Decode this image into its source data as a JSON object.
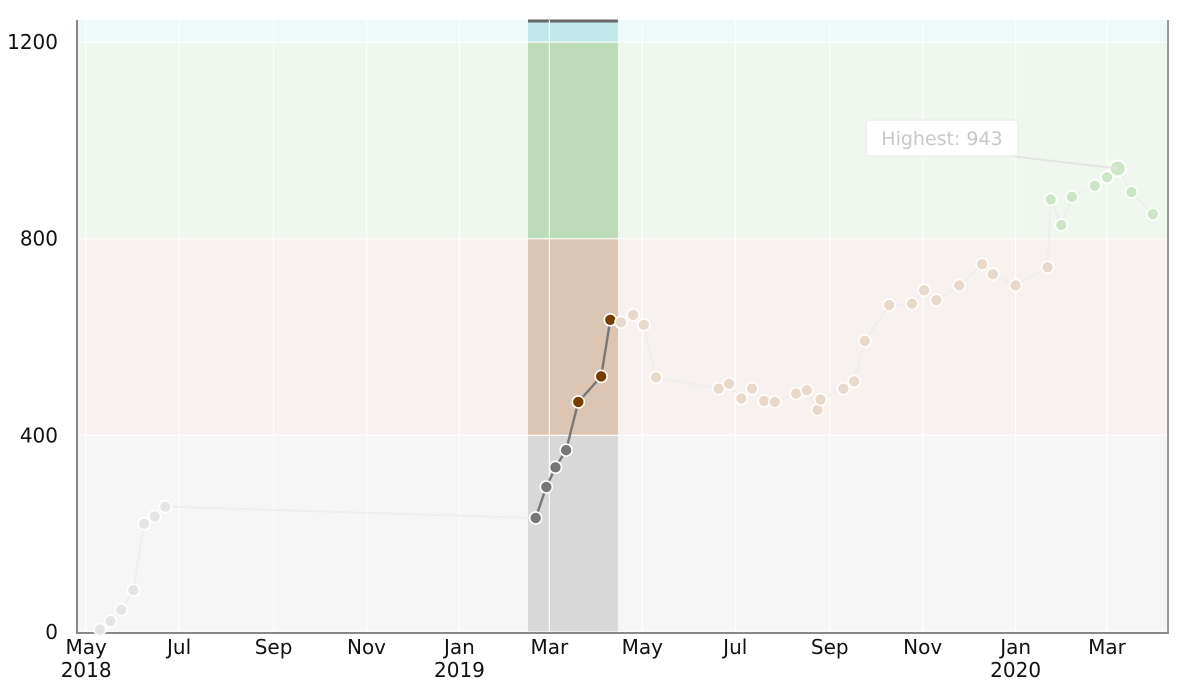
{
  "chart_data": {
    "type": "line",
    "x_axis": {
      "type": "date",
      "range": [
        "2018-04-25",
        "2020-04-10"
      ],
      "ticks": [
        {
          "date": "2018-05-01",
          "label": "May",
          "year": "2018"
        },
        {
          "date": "2018-07-01",
          "label": "Jul",
          "year": ""
        },
        {
          "date": "2018-09-01",
          "label": "Sep",
          "year": ""
        },
        {
          "date": "2018-11-01",
          "label": "Nov",
          "year": ""
        },
        {
          "date": "2019-01-01",
          "label": "Jan",
          "year": "2019"
        },
        {
          "date": "2019-03-01",
          "label": "Mar",
          "year": ""
        },
        {
          "date": "2019-05-01",
          "label": "May",
          "year": ""
        },
        {
          "date": "2019-07-01",
          "label": "Jul",
          "year": ""
        },
        {
          "date": "2019-09-01",
          "label": "Sep",
          "year": ""
        },
        {
          "date": "2019-11-01",
          "label": "Nov",
          "year": ""
        },
        {
          "date": "2020-01-01",
          "label": "Jan",
          "year": "2020"
        },
        {
          "date": "2020-03-01",
          "label": "Mar",
          "year": ""
        }
      ]
    },
    "y_axis": {
      "range": [
        0,
        1245
      ],
      "ticks": [
        0,
        400,
        800,
        1200
      ]
    },
    "bands": [
      {
        "from": 0,
        "to": 400,
        "color": "#f6f6f6",
        "highlight_color": "#d8d8d8"
      },
      {
        "from": 400,
        "to": 800,
        "color": "#f7f2ef",
        "highlight_color": "#dcc5b3"
      },
      {
        "from": 800,
        "to": 1200,
        "color": "#f0f7ef",
        "highlight_color": "#bedbb9"
      },
      {
        "from": 1200,
        "to": 1245,
        "color": "#eef9fa",
        "highlight_color": "#c3e8ec"
      }
    ],
    "highlight_range": [
      "2019-02-15",
      "2019-04-15"
    ],
    "grid": true,
    "series": [
      {
        "points": [
          [
            "2018-05-10",
            5
          ],
          [
            "2018-05-17",
            22
          ],
          [
            "2018-05-24",
            45
          ],
          [
            "2018-06-01",
            85
          ],
          [
            "2018-06-08",
            220
          ],
          [
            "2018-06-15",
            235
          ],
          [
            "2018-06-22",
            255
          ],
          [
            "2019-02-20",
            232
          ],
          [
            "2019-02-27",
            295
          ],
          [
            "2019-03-05",
            335
          ],
          [
            "2019-03-12",
            370
          ],
          [
            "2019-03-20",
            468
          ],
          [
            "2019-04-04",
            520
          ],
          [
            "2019-04-10",
            635
          ],
          [
            "2019-04-17",
            630
          ],
          [
            "2019-04-25",
            645
          ],
          [
            "2019-05-02",
            625
          ],
          [
            "2019-05-10",
            518
          ],
          [
            "2019-06-20",
            495
          ],
          [
            "2019-06-27",
            505
          ],
          [
            "2019-07-05",
            475
          ],
          [
            "2019-07-12",
            495
          ],
          [
            "2019-07-20",
            470
          ],
          [
            "2019-07-27",
            468
          ],
          [
            "2019-08-10",
            485
          ],
          [
            "2019-08-17",
            492
          ],
          [
            "2019-08-24",
            452
          ],
          [
            "2019-08-26",
            473
          ],
          [
            "2019-09-10",
            495
          ],
          [
            "2019-09-17",
            510
          ],
          [
            "2019-09-24",
            592
          ],
          [
            "2019-10-10",
            665
          ],
          [
            "2019-10-25",
            668
          ],
          [
            "2019-11-02",
            695
          ],
          [
            "2019-11-10",
            675
          ],
          [
            "2019-11-25",
            705
          ],
          [
            "2019-12-10",
            748
          ],
          [
            "2019-12-17",
            728
          ],
          [
            "2020-01-01",
            705
          ],
          [
            "2020-01-22",
            742
          ],
          [
            "2020-01-24",
            880
          ],
          [
            "2020-01-31",
            828
          ],
          [
            "2020-02-07",
            885
          ],
          [
            "2020-02-22",
            908
          ],
          [
            "2020-03-01",
            925
          ],
          [
            "2020-03-08",
            943
          ],
          [
            "2020-03-17",
            895
          ],
          [
            "2020-03-31",
            850
          ]
        ]
      }
    ],
    "highest": {
      "date": "2020-03-08",
      "value": 943
    },
    "annotation": "Highest: 943",
    "colors": {
      "highlight_line": "#777777",
      "faded_line": "#eeeeee",
      "axis": "#888888",
      "grid": "#ffffff"
    }
  }
}
